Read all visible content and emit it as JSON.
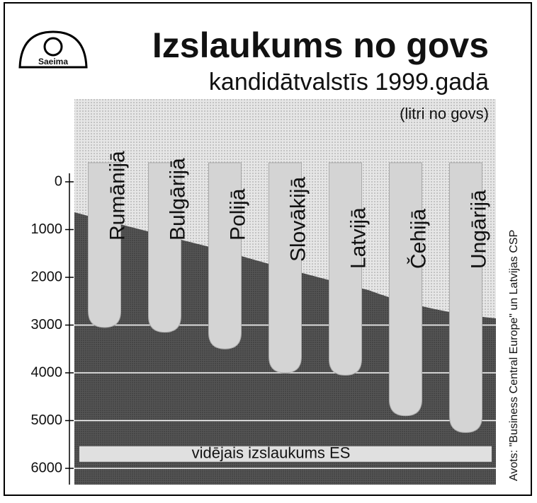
{
  "chart_data": {
    "type": "drip",
    "logo_text": "Saeima",
    "title": "Izslaukums no govs",
    "subtitle": "kandidātvalstīs 1999.gadā",
    "unit_label": "(litri no govs)",
    "source": "Avots: \"Business Central Europe\" un Latvijas CSP",
    "categories": [
      "Rumānijā",
      "Bulgārijā",
      "Polijā",
      "Slovākijā",
      "Latvijā",
      "Čehijā",
      "Ungārijā"
    ],
    "values": [
      3050,
      3150,
      3500,
      4000,
      4050,
      4900,
      5250
    ],
    "color": "#d4d4d4",
    "ylim": [
      0,
      6000
    ],
    "yticks": [
      0,
      1000,
      2000,
      3000,
      4000,
      5000,
      6000
    ],
    "inverted_y": true,
    "grid": true,
    "reference": {
      "label": "vidējais izslaukums ES",
      "value": 5700
    }
  }
}
